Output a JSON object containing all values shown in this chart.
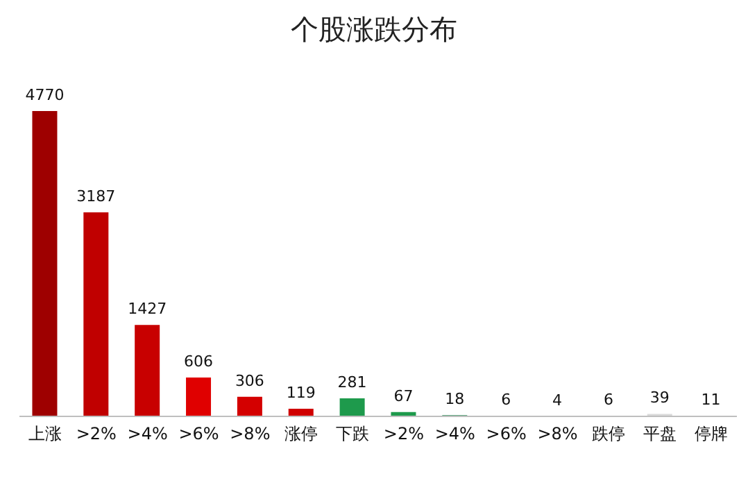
{
  "chart_data": {
    "type": "bar",
    "title": "个股涨跌分布",
    "categories": [
      "上涨",
      ">2%",
      ">4%",
      ">6%",
      ">8%",
      "涨停",
      "下跌",
      ">2%",
      ">4%",
      ">6%",
      ">8%",
      "跌停",
      "平盘",
      "停牌"
    ],
    "values": [
      4770,
      3187,
      1427,
      606,
      306,
      119,
      281,
      67,
      18,
      6,
      4,
      6,
      39,
      11
    ],
    "colors": [
      "#9e0000",
      "#c00000",
      "#c80000",
      "#e00000",
      "#d40000",
      "#d00000",
      "#1e9a4c",
      "#1e9a4c",
      "#2e8b57",
      "#2e8b57",
      "#2e8b57",
      "#2e8b57",
      "#d9d9d9",
      "#4a4a4a"
    ],
    "data_labels": true
  }
}
